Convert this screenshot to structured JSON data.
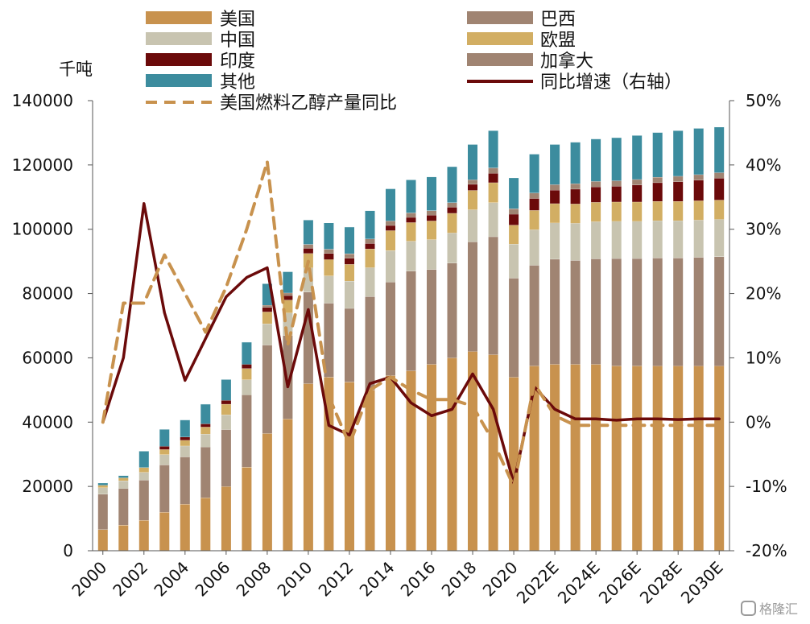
{
  "chart_data": {
    "type": "bar",
    "stacked": true,
    "left_axis_unit": "千吨",
    "left_axis": {
      "ylim": [
        0,
        140000
      ],
      "ticks": [
        "0",
        "20000",
        "40000",
        "60000",
        "80000",
        "100000",
        "120000",
        "140000"
      ]
    },
    "right_axis": {
      "ylim": [
        -20,
        50
      ],
      "ticks": [
        "-20%",
        "-10%",
        "0%",
        "10%",
        "20%",
        "30%",
        "40%",
        "50%"
      ]
    },
    "x_tick_labels": [
      "2000",
      "2002",
      "2004",
      "2006",
      "2008",
      "2010",
      "2012",
      "2014",
      "2016",
      "2018",
      "2020",
      "2022E",
      "2024E",
      "2026E",
      "2028E",
      "2030E"
    ],
    "categories": [
      "2000",
      "2001",
      "2002",
      "2003",
      "2004",
      "2005",
      "2006",
      "2007",
      "2008",
      "2009",
      "2010",
      "2011",
      "2012",
      "2013",
      "2014",
      "2015",
      "2016",
      "2017",
      "2018",
      "2019",
      "2020",
      "2021",
      "2022E",
      "2023E",
      "2024E",
      "2025E",
      "2026E",
      "2027E",
      "2028E",
      "2029E",
      "2030E"
    ],
    "series": [
      {
        "name": "美国",
        "color": "#C8924E",
        "kind": "bar",
        "values": [
          6600,
          8000,
          9500,
          12000,
          14500,
          16500,
          20000,
          26000,
          36500,
          41000,
          52000,
          54000,
          52500,
          50000,
          54500,
          56000,
          58000,
          60000,
          62000,
          61000,
          54000,
          57500,
          58000,
          58000,
          58000,
          57500,
          57500,
          57500,
          57500,
          57500,
          57500
        ]
      },
      {
        "name": "巴西",
        "color": "#A08472",
        "kind": "bar",
        "values": [
          11000,
          11400,
          12500,
          14700,
          14700,
          15800,
          17700,
          22500,
          27500,
          26000,
          28500,
          23000,
          22900,
          29100,
          29100,
          31000,
          29500,
          29500,
          34100,
          36700,
          30800,
          31300,
          32700,
          32300,
          32800,
          33400,
          33400,
          33600,
          33600,
          33800,
          34000
        ]
      },
      {
        "name": "中国",
        "color": "#C8C4B0",
        "kind": "bar",
        "values": [
          2000,
          2400,
          2400,
          3200,
          3400,
          4000,
          4600,
          4700,
          6600,
          7000,
          7500,
          8500,
          8500,
          9000,
          9800,
          9300,
          9300,
          9400,
          10000,
          10600,
          10600,
          11100,
          11300,
          11600,
          11600,
          11600,
          11600,
          11600,
          11600,
          11600,
          11600
        ]
      },
      {
        "name": "欧盟",
        "color": "#D2AE63",
        "kind": "bar",
        "values": [
          800,
          900,
          1500,
          1600,
          1800,
          2200,
          3300,
          3500,
          3700,
          4000,
          4500,
          5100,
          5200,
          5800,
          6200,
          5800,
          5800,
          6100,
          6000,
          6200,
          5900,
          6000,
          6000,
          6000,
          6000,
          6000,
          6000,
          6000,
          6000,
          6000,
          6000
        ]
      },
      {
        "name": "印度",
        "color": "#6B0A0A",
        "kind": "bar",
        "values": [
          0,
          0,
          0,
          1000,
          1000,
          1000,
          1200,
          1300,
          1400,
          1400,
          1600,
          1900,
          1900,
          1700,
          1600,
          1600,
          1800,
          1900,
          1900,
          2900,
          3400,
          3700,
          4200,
          4600,
          4800,
          4900,
          5300,
          5800,
          6100,
          6400,
          6800
        ]
      },
      {
        "name": "加拿大",
        "color": "#A08472",
        "kind": "bar",
        "values": [
          0,
          0,
          0,
          0,
          0,
          0,
          0,
          0,
          700,
          800,
          1200,
          1300,
          1400,
          1400,
          1400,
          1400,
          1400,
          1400,
          1400,
          1700,
          1700,
          1700,
          1700,
          1700,
          1700,
          1700,
          1700,
          1700,
          1700,
          1700,
          1700
        ]
      },
      {
        "name": "其他",
        "color": "#3C8C9E",
        "kind": "bar",
        "values": [
          700,
          700,
          5100,
          5300,
          5300,
          6100,
          6500,
          6900,
          6700,
          6600,
          7600,
          8200,
          8300,
          8800,
          10000,
          10300,
          10500,
          11200,
          11000,
          11600,
          9600,
          12100,
          12500,
          12900,
          13200,
          13400,
          13700,
          13900,
          14200,
          14400,
          14200
        ]
      },
      {
        "name": "同比增速（右轴）",
        "color": "#6B0A0A",
        "kind": "line",
        "axis": "right",
        "values": [
          0,
          10,
          34,
          17,
          6.5,
          13,
          19.5,
          22.5,
          24,
          5.5,
          17.5,
          -0.5,
          -2,
          6,
          7,
          3,
          1,
          2,
          7.5,
          2,
          -9.5,
          5.5,
          2,
          0.5,
          0.5,
          0.3,
          0.5,
          0.5,
          0.4,
          0.5,
          0.5
        ]
      },
      {
        "name": "美国燃料乙醇产量同比",
        "color": "#C8924E",
        "kind": "line",
        "dashed": true,
        "axis": "right",
        "values": [
          0,
          18.5,
          18.5,
          26,
          20,
          14,
          21,
          30,
          40.5,
          12,
          25,
          4,
          -3.5,
          5,
          7,
          5,
          3.5,
          3.5,
          2.5,
          -3,
          -10,
          6,
          1,
          -0.5,
          -0.5,
          -0.5,
          -0.5,
          -0.5,
          -0.5,
          -0.5,
          -0.5
        ]
      }
    ],
    "legend": {
      "placement": "top",
      "left_column": [
        "美国",
        "中国",
        "印度",
        "其他",
        "美国燃料乙醇产量同比"
      ],
      "right_column": [
        "巴西",
        "欧盟",
        "加拿大",
        "同比增速（右轴）"
      ]
    },
    "grid": false
  },
  "watermark": "格隆汇"
}
